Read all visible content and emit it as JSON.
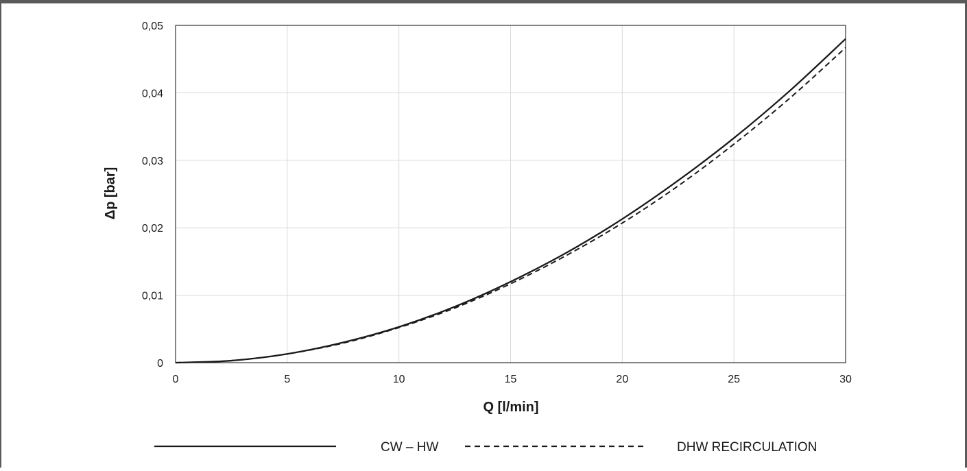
{
  "chart_data": {
    "type": "line",
    "title": "",
    "xlabel": "Q [l/min]",
    "ylabel": "Δp [bar]",
    "xlim": [
      0,
      30
    ],
    "ylim": [
      0,
      0.05
    ],
    "x_ticks": [
      0,
      5,
      10,
      15,
      20,
      25,
      30
    ],
    "x_tick_labels": [
      "0",
      "5",
      "10",
      "15",
      "20",
      "25",
      "30"
    ],
    "y_ticks": [
      0,
      0.01,
      0.02,
      0.03,
      0.04,
      0.05
    ],
    "y_tick_labels": [
      "0",
      "0,01",
      "0,02",
      "0,03",
      "0,04",
      "0,05"
    ],
    "grid": true,
    "legend_position": "bottom",
    "series": [
      {
        "name": "CW – HW",
        "style": "solid",
        "color": "#1a1a1a",
        "x": [
          0,
          2.5,
          5,
          7.5,
          10,
          12.5,
          15,
          17.5,
          20,
          22.5,
          25,
          27.5,
          30
        ],
        "y": [
          0,
          0.0003,
          0.0013,
          0.003,
          0.0053,
          0.0083,
          0.012,
          0.0163,
          0.0213,
          0.027,
          0.0333,
          0.0403,
          0.048
        ]
      },
      {
        "name": "DHW RECIRCULATION",
        "style": "dashed",
        "color": "#1a1a1a",
        "x": [
          0,
          2.5,
          5,
          7.5,
          10,
          12.5,
          15,
          17.5,
          20,
          22.5,
          25,
          27.5,
          30
        ],
        "y": [
          0,
          0.0003,
          0.0013,
          0.0029,
          0.0052,
          0.0081,
          0.0117,
          0.0159,
          0.0207,
          0.0262,
          0.0324,
          0.0392,
          0.0467
        ]
      }
    ]
  }
}
